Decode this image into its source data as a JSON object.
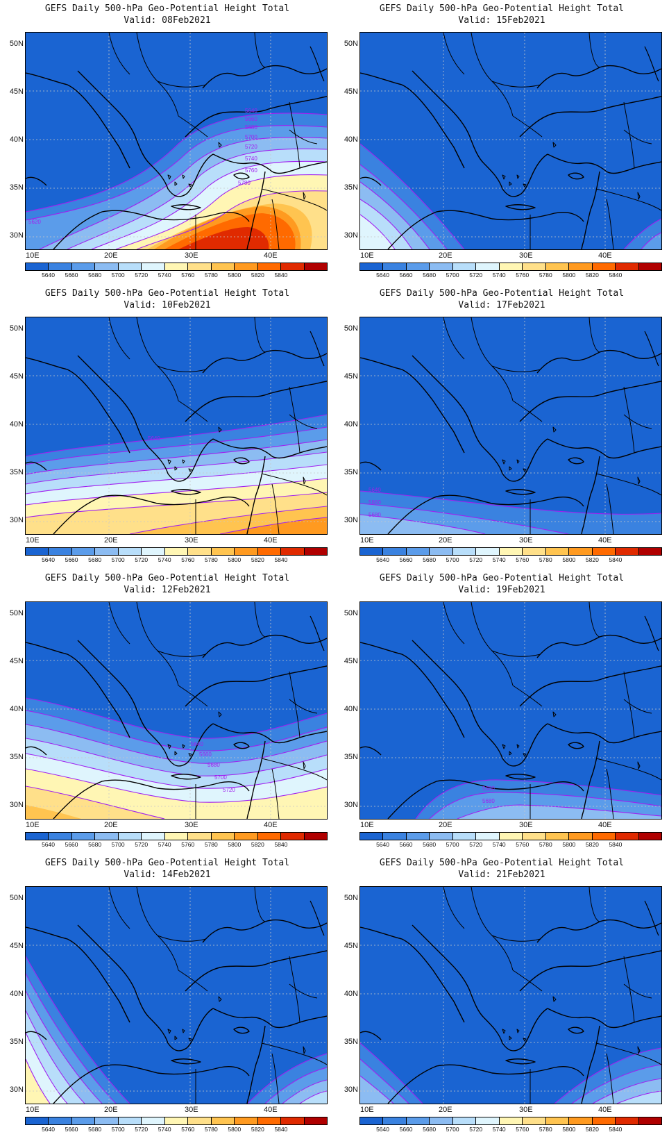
{
  "colors": {
    "levels": [
      "#1a64d2",
      "#3a82e0",
      "#5b9cea",
      "#8cbcf2",
      "#b8defa",
      "#dff5fd",
      "#fff6b4",
      "#ffe08a",
      "#ffc450",
      "#ff9a20",
      "#ff6a00",
      "#e02a00",
      "#b00000"
    ],
    "contour": "#a020f0",
    "coast": "#000000",
    "grid": "#c8c8c8"
  },
  "colorbar_labels": [
    "5640",
    "5660",
    "5680",
    "5700",
    "5720",
    "5740",
    "5760",
    "5780",
    "5800",
    "5820",
    "5840"
  ],
  "axes": {
    "lon_labels": [
      "10E",
      "20E",
      "30E",
      "40E"
    ],
    "lat_labels": [
      "50N",
      "45N",
      "40N",
      "35N",
      "30N"
    ]
  },
  "panels": [
    {
      "title": "GEFS Daily 500-hPa Geo-Potential Height Total",
      "valid": "Valid: 08Feb2021",
      "contour_labels": [
        "5640",
        "5660",
        "5680",
        "5700",
        "5720",
        "5740",
        "5760",
        "5780",
        "5620"
      ]
    },
    {
      "title": "GEFS Daily 500-hPa Geo-Potential Height Total",
      "valid": "Valid: 15Feb2021",
      "contour_labels": []
    },
    {
      "title": "GEFS Daily 500-hPa Geo-Potential Height Total",
      "valid": "Valid: 10Feb2021",
      "contour_labels": [
        "5640"
      ]
    },
    {
      "title": "GEFS Daily 500-hPa Geo-Potential Height Total",
      "valid": "Valid: 17Feb2021",
      "contour_labels": [
        "5640",
        "5660",
        "5680"
      ]
    },
    {
      "title": "GEFS Daily 500-hPa Geo-Potential Height Total",
      "valid": "Valid: 12Feb2021",
      "contour_labels": [
        "5640",
        "5660",
        "5680",
        "5700",
        "5720"
      ]
    },
    {
      "title": "GEFS Daily 500-hPa Geo-Potential Height Total",
      "valid": "Valid: 19Feb2021",
      "contour_labels": [
        "5660",
        "5680"
      ]
    },
    {
      "title": "GEFS Daily 500-hPa Geo-Potential Height Total",
      "valid": "Valid: 14Feb2021",
      "contour_labels": []
    },
    {
      "title": "GEFS Daily 500-hPa Geo-Potential Height Total",
      "valid": "Valid: 21Feb2021",
      "contour_labels": []
    }
  ]
}
